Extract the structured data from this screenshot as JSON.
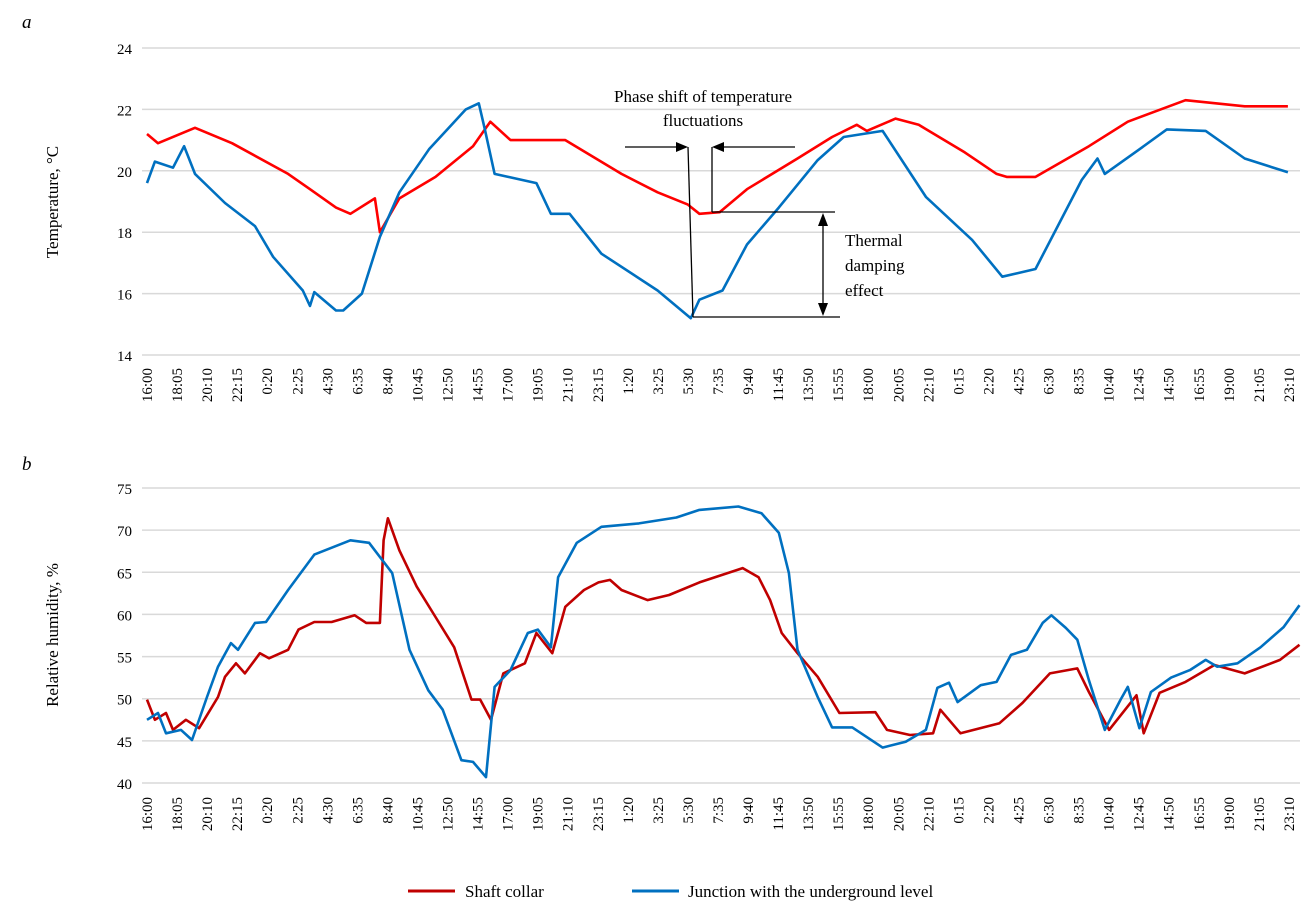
{
  "chart_data": [
    {
      "type": "line",
      "panel_label": "a",
      "ylabel": "Temperature, °C",
      "ylim": [
        14,
        24
      ],
      "yticks": [
        14,
        16,
        18,
        20,
        22,
        24
      ],
      "x_unit": "hours elapsed from 16:00",
      "xlim": [
        0,
        80
      ],
      "xtick_labels": [
        "16:00",
        "18:05",
        "20:10",
        "22:15",
        "0:20",
        "2:25",
        "4:30",
        "6:35",
        "8:40",
        "10:45",
        "12:50",
        "14:55",
        "17:00",
        "19:05",
        "21:10",
        "23:15",
        "1:20",
        "3:25",
        "5:30",
        "7:35",
        "9:40",
        "11:45",
        "13:50",
        "15:55",
        "18:00",
        "20:05",
        "22:10",
        "0:15",
        "2:20",
        "4:25",
        "6:30",
        "8:35",
        "10:40",
        "12:45",
        "14:50",
        "16:55",
        "19:00",
        "21:05",
        "23:10"
      ],
      "grid": true,
      "annotations": {
        "phase_shift_line1": "Phase shift of temperature",
        "phase_shift_line2": "fluctuations",
        "damping_line1": "Thermal",
        "damping_line2": "damping",
        "damping_line3": "effect"
      },
      "series": [
        {
          "name": "Shaft collar",
          "color": "#ff0000",
          "points": [
            [
              0,
              21.2
            ],
            [
              0.76,
              20.9
            ],
            [
              3.33,
              21.4
            ],
            [
              5.89,
              20.9
            ],
            [
              9.78,
              19.9
            ],
            [
              11.3,
              19.4
            ],
            [
              13.1,
              18.8
            ],
            [
              14.1,
              18.6
            ],
            [
              15.8,
              19.1
            ],
            [
              16.15,
              18.0
            ],
            [
              17.5,
              19.1
            ],
            [
              20.0,
              19.8
            ],
            [
              22.6,
              20.8
            ],
            [
              23.8,
              21.6
            ],
            [
              25.2,
              21.0
            ],
            [
              29.0,
              21.0
            ],
            [
              32.9,
              19.9
            ],
            [
              35.4,
              19.3
            ],
            [
              37.5,
              18.9
            ],
            [
              38.3,
              18.6
            ],
            [
              39.7,
              18.65
            ],
            [
              41.6,
              19.4
            ],
            [
              45.1,
              20.4
            ],
            [
              47.5,
              21.1
            ],
            [
              49.2,
              21.5
            ],
            [
              49.9,
              21.3
            ],
            [
              51.9,
              21.7
            ],
            [
              53.5,
              21.5
            ],
            [
              56.7,
              20.6
            ],
            [
              58.9,
              19.9
            ],
            [
              59.6,
              19.8
            ],
            [
              61.6,
              19.8
            ],
            [
              65.3,
              20.8
            ],
            [
              68.0,
              21.6
            ],
            [
              72.0,
              22.3
            ],
            [
              76.1,
              22.1
            ],
            [
              79.1,
              22.1
            ]
          ]
        },
        {
          "name": "Junction with the underground level",
          "color": "#0070c0",
          "points": [
            [
              0,
              19.6
            ],
            [
              0.55,
              20.3
            ],
            [
              1.8,
              20.1
            ],
            [
              2.57,
              20.8
            ],
            [
              3.33,
              19.9
            ],
            [
              5.41,
              18.95
            ],
            [
              7.49,
              18.2
            ],
            [
              8.74,
              17.2
            ],
            [
              10.8,
              16.1
            ],
            [
              11.3,
              15.6
            ],
            [
              11.6,
              16.05
            ],
            [
              13.1,
              15.45
            ],
            [
              13.6,
              15.45
            ],
            [
              14.9,
              16.0
            ],
            [
              16.15,
              17.85
            ],
            [
              17.5,
              19.3
            ],
            [
              19.55,
              20.7
            ],
            [
              22.1,
              22.0
            ],
            [
              23.0,
              22.2
            ],
            [
              23.4,
              21.4
            ],
            [
              24.1,
              19.9
            ],
            [
              27.0,
              19.6
            ],
            [
              28.0,
              18.6
            ],
            [
              29.3,
              18.6
            ],
            [
              31.5,
              17.3
            ],
            [
              35.4,
              16.1
            ],
            [
              37.7,
              15.2
            ],
            [
              38.3,
              15.8
            ],
            [
              39.9,
              16.1
            ],
            [
              41.6,
              17.6
            ],
            [
              43.8,
              18.8
            ],
            [
              46.5,
              20.35
            ],
            [
              48.3,
              21.1
            ],
            [
              51.0,
              21.3
            ],
            [
              54.0,
              19.15
            ],
            [
              57.2,
              17.75
            ],
            [
              59.3,
              16.55
            ],
            [
              61.6,
              16.8
            ],
            [
              64.8,
              19.7
            ],
            [
              65.9,
              20.4
            ],
            [
              66.4,
              19.9
            ],
            [
              68.8,
              20.7
            ],
            [
              70.7,
              21.35
            ],
            [
              73.4,
              21.3
            ],
            [
              76.1,
              20.4
            ],
            [
              79.1,
              19.95
            ]
          ]
        }
      ]
    },
    {
      "type": "line",
      "panel_label": "b",
      "ylabel": "Relative humidity, %",
      "ylim": [
        40,
        75
      ],
      "yticks": [
        40,
        45,
        50,
        55,
        60,
        65,
        70,
        75
      ],
      "x_unit": "hours elapsed from 16:00",
      "xlim": [
        0,
        80
      ],
      "xtick_labels": [
        "16:00",
        "18:05",
        "20:10",
        "22:15",
        "0:20",
        "2:25",
        "4:30",
        "6:35",
        "8:40",
        "10:45",
        "12:50",
        "14:55",
        "17:00",
        "19:05",
        "21:10",
        "23:15",
        "1:20",
        "3:25",
        "5:30",
        "7:35",
        "9:40",
        "11:45",
        "13:50",
        "15:55",
        "18:00",
        "20:05",
        "22:10",
        "0:15",
        "2:20",
        "4:25",
        "6:30",
        "8:35",
        "10:40",
        "12:45",
        "14:50",
        "16:55",
        "19:00",
        "21:05",
        "23:10"
      ],
      "grid": true,
      "series": [
        {
          "name": "Shaft collar",
          "color": "#c00000",
          "points": [
            [
              0,
              49.9
            ],
            [
              0.55,
              47.5
            ],
            [
              1.32,
              48.3
            ],
            [
              1.8,
              46.3
            ],
            [
              2.7,
              47.5
            ],
            [
              3.61,
              46.5
            ],
            [
              4.92,
              50.2
            ],
            [
              5.41,
              52.6
            ],
            [
              6.17,
              54.2
            ],
            [
              6.79,
              53.0
            ],
            [
              7.83,
              55.4
            ],
            [
              8.46,
              54.8
            ],
            [
              9.78,
              55.8
            ],
            [
              10.5,
              58.2
            ],
            [
              11.6,
              59.1
            ],
            [
              12.8,
              59.1
            ],
            [
              14.4,
              59.9
            ],
            [
              15.2,
              59.0
            ],
            [
              16.15,
              59.0
            ],
            [
              16.4,
              68.8
            ],
            [
              16.7,
              71.4
            ],
            [
              17.5,
              67.6
            ],
            [
              18.7,
              63.3
            ],
            [
              20.0,
              59.7
            ],
            [
              21.3,
              56.1
            ],
            [
              22.5,
              49.9
            ],
            [
              23.1,
              49.9
            ],
            [
              23.85,
              47.5
            ],
            [
              24.7,
              53.0
            ],
            [
              26.2,
              54.2
            ],
            [
              27.0,
              57.8
            ],
            [
              28.1,
              55.4
            ],
            [
              29.0,
              60.9
            ],
            [
              30.3,
              62.9
            ],
            [
              31.3,
              63.8
            ],
            [
              32.1,
              64.1
            ],
            [
              32.9,
              62.9
            ],
            [
              34.7,
              61.7
            ],
            [
              36.2,
              62.3
            ],
            [
              38.3,
              63.8
            ],
            [
              41.3,
              65.5
            ],
            [
              42.4,
              64.4
            ],
            [
              43.2,
              61.7
            ],
            [
              44.0,
              57.8
            ],
            [
              45.1,
              55.4
            ],
            [
              46.5,
              52.6
            ],
            [
              48.0,
              48.3
            ],
            [
              50.5,
              48.4
            ],
            [
              51.3,
              46.3
            ],
            [
              52.9,
              45.7
            ],
            [
              54.5,
              45.9
            ],
            [
              55.0,
              48.7
            ],
            [
              56.4,
              45.9
            ],
            [
              59.1,
              47.1
            ],
            [
              60.7,
              49.5
            ],
            [
              62.6,
              53.0
            ],
            [
              64.5,
              53.6
            ],
            [
              65.3,
              50.8
            ],
            [
              66.7,
              46.3
            ],
            [
              68.6,
              50.4
            ],
            [
              69.1,
              45.9
            ],
            [
              70.2,
              50.7
            ],
            [
              72.0,
              52.0
            ],
            [
              74.0,
              54.0
            ],
            [
              76.1,
              53.0
            ],
            [
              78.55,
              54.6
            ],
            [
              79.9,
              56.4
            ]
          ]
        },
        {
          "name": "Junction with the underground level",
          "color": "#0070c0",
          "points": [
            [
              0,
              47.5
            ],
            [
              0.76,
              48.3
            ],
            [
              1.32,
              45.9
            ],
            [
              2.36,
              46.3
            ],
            [
              3.12,
              45.1
            ],
            [
              4.16,
              50.2
            ],
            [
              4.92,
              53.8
            ],
            [
              5.82,
              56.6
            ],
            [
              6.31,
              55.8
            ],
            [
              7.49,
              59.0
            ],
            [
              8.25,
              59.1
            ],
            [
              9.78,
              62.9
            ],
            [
              11.6,
              67.1
            ],
            [
              14.1,
              68.8
            ],
            [
              15.4,
              68.5
            ],
            [
              17.0,
              64.9
            ],
            [
              18.2,
              55.8
            ],
            [
              19.5,
              51.0
            ],
            [
              20.5,
              48.7
            ],
            [
              21.8,
              42.7
            ],
            [
              22.6,
              42.5
            ],
            [
              23.5,
              40.7
            ],
            [
              24.1,
              51.4
            ],
            [
              25.2,
              53.4
            ],
            [
              26.4,
              57.8
            ],
            [
              27.1,
              58.2
            ],
            [
              28.0,
              56.1
            ],
            [
              28.5,
              64.4
            ],
            [
              29.8,
              68.5
            ],
            [
              31.5,
              70.4
            ],
            [
              34.1,
              70.8
            ],
            [
              36.7,
              71.5
            ],
            [
              38.3,
              72.4
            ],
            [
              41.0,
              72.8
            ],
            [
              42.6,
              72.0
            ],
            [
              43.8,
              69.7
            ],
            [
              44.5,
              64.9
            ],
            [
              45.1,
              55.8
            ],
            [
              46.5,
              50.2
            ],
            [
              47.5,
              46.6
            ],
            [
              48.9,
              46.6
            ],
            [
              51.0,
              44.2
            ],
            [
              52.6,
              44.9
            ],
            [
              54.0,
              46.3
            ],
            [
              54.8,
              51.3
            ],
            [
              55.6,
              51.9
            ],
            [
              56.2,
              49.6
            ],
            [
              57.8,
              51.6
            ],
            [
              58.9,
              52.0
            ],
            [
              59.9,
              55.2
            ],
            [
              61.0,
              55.8
            ],
            [
              62.1,
              59.0
            ],
            [
              62.7,
              59.9
            ],
            [
              63.7,
              58.4
            ],
            [
              64.5,
              57.0
            ],
            [
              65.3,
              52.2
            ],
            [
              66.4,
              46.3
            ],
            [
              67.5,
              49.9
            ],
            [
              68.0,
              51.4
            ],
            [
              68.8,
              46.5
            ],
            [
              69.6,
              50.8
            ],
            [
              71.0,
              52.5
            ],
            [
              72.3,
              53.4
            ],
            [
              73.4,
              54.6
            ],
            [
              74.2,
              53.8
            ],
            [
              75.6,
              54.2
            ],
            [
              77.2,
              56.1
            ],
            [
              78.8,
              58.5
            ],
            [
              79.9,
              61.1
            ]
          ]
        }
      ]
    }
  ],
  "legend": {
    "placement": "bottom-center",
    "items": [
      {
        "label": "Shaft collar",
        "color": "#c00000"
      },
      {
        "label": "Junction with the underground level",
        "color": "#0070c0"
      }
    ]
  }
}
